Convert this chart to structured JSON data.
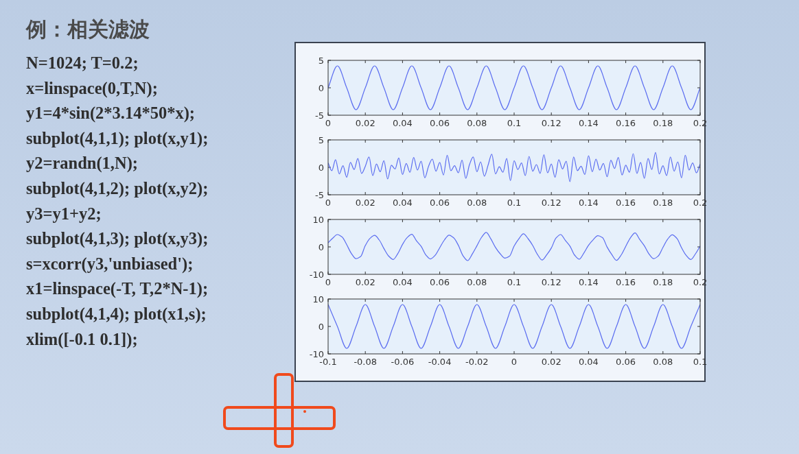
{
  "chart_data": [
    {
      "type": "other",
      "title": "例：相关滤波",
      "annotations": [
        "N=1024; T=0.2;",
        "x=linspace(0,T,N);",
        "y1=4*sin(2*3.14*50*x);",
        "subplot(4,1,1);  plot(x,y1);",
        "y2=randn(1,N);",
        "subplot(4,1,2);  plot(x,y2);",
        "y3=y1+y2;",
        "subplot(4,1,3);  plot(x,y3);",
        "s=xcorr(y3,'unbiased');",
        "x1=linspace(-T, T,2*N-1);",
        "subplot(4,1,4);  plot(x1,s);",
        "xlim([-0.1 0.1]);"
      ]
    },
    {
      "type": "line",
      "color": "#5a6cf0",
      "xlim": [
        0,
        0.2
      ],
      "xticks": [
        0,
        0.02,
        0.04,
        0.06,
        0.08,
        0.1,
        0.12,
        0.14,
        0.16,
        0.18,
        0.2
      ],
      "ylim": [
        -5,
        5
      ],
      "yticks": [
        -5,
        0,
        5
      ],
      "x": [
        0,
        0.005,
        0.01,
        0.015,
        0.02,
        0.025,
        0.03,
        0.035,
        0.04,
        0.045,
        0.05,
        0.055,
        0.06,
        0.065,
        0.07,
        0.075,
        0.08,
        0.085,
        0.09,
        0.095,
        0.1,
        0.105,
        0.11,
        0.115,
        0.12,
        0.125,
        0.13,
        0.135,
        0.14,
        0.145,
        0.15,
        0.155,
        0.16,
        0.165,
        0.17,
        0.175,
        0.18,
        0.185,
        0.19,
        0.195,
        0.2
      ],
      "values": [
        0,
        4,
        0,
        -4,
        0,
        4,
        0,
        -4,
        0,
        4,
        0,
        -4,
        0,
        4,
        0,
        -4,
        0,
        4,
        0,
        -4,
        0,
        4,
        0,
        -4,
        0,
        4,
        0,
        -4,
        0,
        4,
        0,
        -4,
        0,
        4,
        0,
        -4,
        0,
        4,
        0,
        -4,
        0
      ]
    },
    {
      "type": "line",
      "color": "#5a6cf0",
      "xlim": [
        0,
        0.2
      ],
      "xticks": [
        0,
        0.02,
        0.04,
        0.06,
        0.08,
        0.1,
        0.12,
        0.14,
        0.16,
        0.18,
        0.2
      ],
      "ylim": [
        -5,
        5
      ],
      "yticks": [
        -5,
        0,
        5
      ],
      "x": [
        0,
        0.002,
        0.004,
        0.006,
        0.008,
        0.01,
        0.012,
        0.014,
        0.016,
        0.018,
        0.02,
        0.022,
        0.024,
        0.026,
        0.028,
        0.03,
        0.032,
        0.034,
        0.036,
        0.038,
        0.04,
        0.042,
        0.044,
        0.046,
        0.048,
        0.05,
        0.052,
        0.054,
        0.056,
        0.058,
        0.06,
        0.062,
        0.064,
        0.066,
        0.068,
        0.07,
        0.072,
        0.074,
        0.076,
        0.078,
        0.08,
        0.082,
        0.084,
        0.086,
        0.088,
        0.09,
        0.092,
        0.094,
        0.096,
        0.098,
        0.1,
        0.102,
        0.104,
        0.106,
        0.108,
        0.11,
        0.112,
        0.114,
        0.116,
        0.118,
        0.12,
        0.122,
        0.124,
        0.126,
        0.128,
        0.13,
        0.132,
        0.134,
        0.136,
        0.138,
        0.14,
        0.142,
        0.144,
        0.146,
        0.148,
        0.15,
        0.152,
        0.154,
        0.156,
        0.158,
        0.16,
        0.162,
        0.164,
        0.166,
        0.168,
        0.17,
        0.172,
        0.174,
        0.176,
        0.178,
        0.18,
        0.182,
        0.184,
        0.186,
        0.188,
        0.19,
        0.192,
        0.194,
        0.196,
        0.198,
        0.2
      ],
      "values": [
        0.8,
        -0.6,
        1.4,
        -1.2,
        0.3,
        -1.8,
        0.9,
        -0.4,
        1.6,
        -1.1,
        0.2,
        1.9,
        -1.5,
        0.6,
        -0.8,
        1.2,
        -2.1,
        0.4,
        -0.3,
        1.7,
        -1.3,
        0.7,
        -0.9,
        1.8,
        -0.5,
        1.1,
        -1.9,
        0.2,
        1.5,
        -0.7,
        0.9,
        -1.4,
        2.2,
        -0.6,
        0.3,
        -1.0,
        1.3,
        -2.0,
        0.5,
        1.9,
        -0.8,
        1.0,
        -1.6,
        0.4,
        2.4,
        -1.2,
        0.1,
        -0.9,
        1.6,
        -2.4,
        1.2,
        -0.4,
        0.8,
        -1.5,
        2.0,
        -0.7,
        0.5,
        -1.1,
        2.3,
        -1.0,
        0.6,
        -1.8,
        1.4,
        -0.3,
        1.1,
        -2.6,
        1.9,
        -0.6,
        0.2,
        -1.3,
        2.1,
        -0.8,
        1.5,
        -0.5,
        0.7,
        -1.7,
        1.3,
        -0.2,
        1.8,
        -1.4,
        0.4,
        -0.9,
        2.5,
        -1.1,
        0.9,
        -2.0,
        1.6,
        -0.4,
        2.7,
        -1.2,
        0.3,
        -1.5,
        1.9,
        -0.7,
        1.0,
        -1.9,
        2.2,
        -0.5,
        0.8,
        -1.0,
        0.6
      ]
    },
    {
      "type": "line",
      "color": "#5a6cf0",
      "xlim": [
        0,
        0.2
      ],
      "xticks": [
        0,
        0.02,
        0.04,
        0.06,
        0.08,
        0.1,
        0.12,
        0.14,
        0.16,
        0.18,
        0.2
      ],
      "ylim": [
        -10,
        10
      ],
      "yticks": [
        -10,
        0,
        10
      ],
      "x": [
        0,
        0.0025,
        0.005,
        0.0075,
        0.01,
        0.0125,
        0.015,
        0.0175,
        0.02,
        0.0225,
        0.025,
        0.0275,
        0.03,
        0.0325,
        0.035,
        0.0375,
        0.04,
        0.0425,
        0.045,
        0.0475,
        0.05,
        0.0525,
        0.055,
        0.0575,
        0.06,
        0.0625,
        0.065,
        0.0675,
        0.07,
        0.0725,
        0.075,
        0.0775,
        0.08,
        0.0825,
        0.085,
        0.0875,
        0.09,
        0.0925,
        0.095,
        0.0975,
        0.1,
        0.1025,
        0.105,
        0.1075,
        0.11,
        0.1125,
        0.115,
        0.1175,
        0.12,
        0.1225,
        0.125,
        0.1275,
        0.13,
        0.1325,
        0.135,
        0.1375,
        0.14,
        0.1425,
        0.145,
        0.1475,
        0.15,
        0.1525,
        0.155,
        0.1575,
        0.16,
        0.1625,
        0.165,
        0.1675,
        0.17,
        0.1725,
        0.175,
        0.1775,
        0.18,
        0.1825,
        0.185,
        0.1875,
        0.19,
        0.1925,
        0.195,
        0.1975,
        0.2
      ],
      "values": [
        1.5,
        3.2,
        4.5,
        3.6,
        0.8,
        -2.4,
        -4.3,
        -3.5,
        0.5,
        3.1,
        4.2,
        2.5,
        -0.6,
        -3.3,
        -4.6,
        -2.4,
        0.9,
        3.4,
        4.6,
        2.2,
        0.2,
        -2.9,
        -4.4,
        -3.1,
        -0.3,
        2.5,
        4.3,
        3.3,
        0.6,
        -3.2,
        -5.0,
        -2.6,
        0.4,
        3.5,
        5.3,
        2.9,
        -0.2,
        -2.5,
        -4.1,
        -3.4,
        0.3,
        2.9,
        4.8,
        3.0,
        0.5,
        -2.7,
        -4.8,
        -2.9,
        -0.4,
        3.2,
        4.5,
        2.4,
        0.3,
        -3.0,
        -4.5,
        -2.2,
        0.6,
        2.6,
        4.1,
        3.4,
        -0.1,
        -2.8,
        -4.9,
        -3.0,
        0.2,
        3.3,
        5.1,
        2.7,
        0.4,
        -2.6,
        -4.3,
        -3.3,
        -0.2,
        2.8,
        4.4,
        3.1,
        -0.3,
        -3.1,
        -4.6,
        -2.5,
        0.3
      ]
    },
    {
      "type": "line",
      "color": "#5a6cf0",
      "xlim": [
        -0.1,
        0.1
      ],
      "xticks": [
        -0.1,
        -0.08,
        -0.06,
        -0.04,
        -0.02,
        0,
        0.02,
        0.04,
        0.06,
        0.08,
        0.1
      ],
      "ylim": [
        -10,
        10
      ],
      "yticks": [
        -10,
        0,
        10
      ],
      "x": [
        -0.1,
        -0.095,
        -0.09,
        -0.085,
        -0.08,
        -0.075,
        -0.07,
        -0.065,
        -0.06,
        -0.055,
        -0.05,
        -0.045,
        -0.04,
        -0.035,
        -0.03,
        -0.025,
        -0.02,
        -0.015,
        -0.01,
        -0.005,
        0,
        0.005,
        0.01,
        0.015,
        0.02,
        0.025,
        0.03,
        0.035,
        0.04,
        0.045,
        0.05,
        0.055,
        0.06,
        0.065,
        0.07,
        0.075,
        0.08,
        0.085,
        0.09,
        0.095,
        0.1
      ],
      "values": [
        8,
        0,
        -8,
        0,
        8,
        0,
        -8,
        0,
        8,
        0,
        -8,
        0,
        8,
        0,
        -8,
        0,
        8,
        0,
        -8,
        0,
        8,
        0,
        -8,
        0,
        8,
        0,
        -8,
        0,
        8,
        0,
        -8,
        0,
        8,
        0,
        -8,
        0,
        8,
        0,
        -8,
        0,
        8
      ]
    }
  ]
}
